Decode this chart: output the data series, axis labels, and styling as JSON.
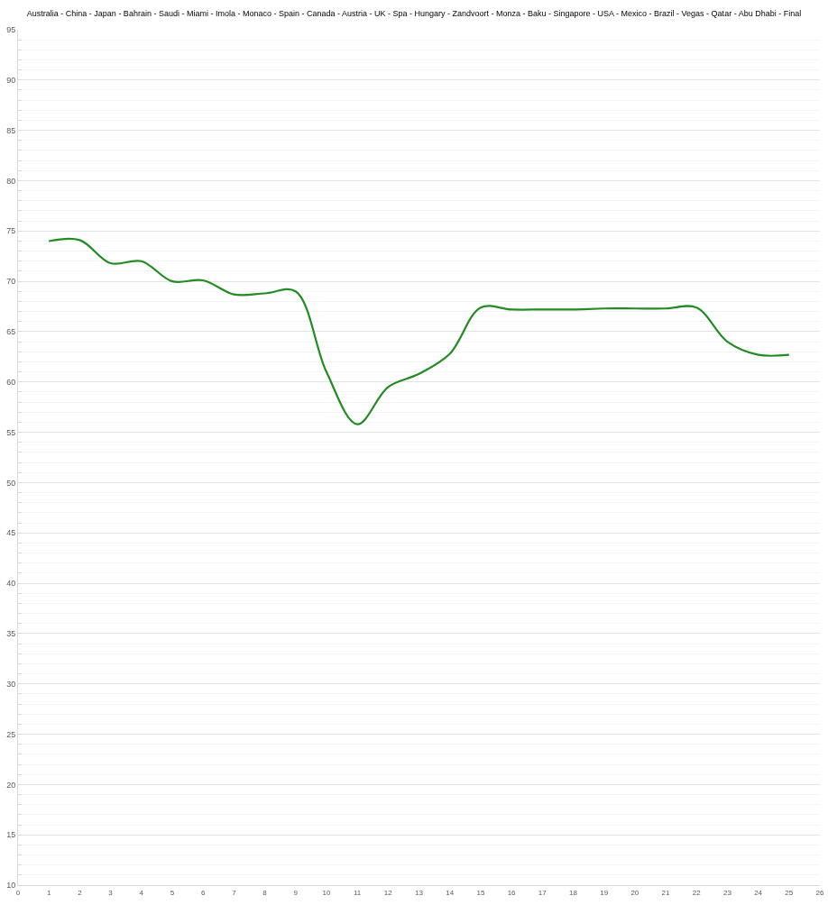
{
  "chart_data": {
    "type": "line",
    "title": "Australia - China - Japan - Bahrain - Saudi - Miami - Imola - Monaco - Spain - Canada - Austria - UK - Spa - Hungary - Zandvoort - Monza - Baku - Singapore - USA - Mexico - Brazil - Vegas - Qatar - Abu Dhabi - Final",
    "x": [
      1,
      2,
      3,
      4,
      5,
      6,
      7,
      8,
      9,
      10,
      11,
      12,
      13,
      14,
      15,
      16,
      17,
      18,
      19,
      20,
      21,
      22,
      23,
      24,
      25
    ],
    "values": [
      74.0,
      74.1,
      71.8,
      72.0,
      70.0,
      70.1,
      68.7,
      68.8,
      69.0,
      61.0,
      55.8,
      59.5,
      60.8,
      62.8,
      67.4,
      67.2,
      67.2,
      67.2,
      67.3,
      67.3,
      67.3,
      67.4,
      64.0,
      62.7,
      62.7
    ],
    "color": "#228b22",
    "xlim": [
      0,
      26
    ],
    "xticks": [
      0,
      1,
      2,
      3,
      4,
      5,
      6,
      7,
      8,
      9,
      10,
      11,
      12,
      13,
      14,
      15,
      16,
      17,
      18,
      19,
      20,
      21,
      22,
      23,
      24,
      25,
      26
    ],
    "ylim": [
      10,
      95
    ],
    "yticks": [
      10,
      {
        "value": 11,
        "label": null
      },
      {
        "value": 12,
        "label": null
      },
      {
        "value": 13,
        "label": null
      },
      {
        "value": 14,
        "label": null
      },
      15,
      {
        "value": 16,
        "label": null
      },
      {
        "value": 17,
        "label": null
      },
      {
        "value": 18,
        "label": null
      },
      {
        "value": 19,
        "label": null
      },
      20,
      {
        "value": 21,
        "label": null
      },
      {
        "value": 22,
        "label": null
      },
      {
        "value": 23,
        "label": null
      },
      {
        "value": 24,
        "label": null
      },
      25,
      {
        "value": 26,
        "label": null
      },
      {
        "value": 27,
        "label": null
      },
      {
        "value": 28,
        "label": null
      },
      {
        "value": 29,
        "label": null
      },
      30,
      {
        "value": 31,
        "label": null
      },
      {
        "value": 32,
        "label": null
      },
      {
        "value": 33,
        "label": null
      },
      {
        "value": 34,
        "label": null
      },
      35,
      {
        "value": 36,
        "label": null
      },
      {
        "value": 37,
        "label": null
      },
      {
        "value": 38,
        "label": null
      },
      {
        "value": 39,
        "label": null
      },
      40,
      {
        "value": 41,
        "label": null
      },
      {
        "value": 42,
        "label": null
      },
      {
        "value": 43,
        "label": null
      },
      {
        "value": 44,
        "label": null
      },
      45,
      {
        "value": 46,
        "label": null
      },
      {
        "value": 47,
        "label": null
      },
      {
        "value": 48,
        "label": null
      },
      {
        "value": 49,
        "label": null
      },
      50,
      {
        "value": 51,
        "label": null
      },
      {
        "value": 52,
        "label": null
      },
      {
        "value": 53,
        "label": null
      },
      {
        "value": 54,
        "label": null
      },
      55,
      {
        "value": 56,
        "label": null
      },
      {
        "value": 57,
        "label": null
      },
      {
        "value": 58,
        "label": null
      },
      {
        "value": 59,
        "label": null
      },
      60,
      {
        "value": 61,
        "label": null
      },
      {
        "value": 62,
        "label": null
      },
      {
        "value": 63,
        "label": null
      },
      {
        "value": 64,
        "label": null
      },
      65,
      {
        "value": 66,
        "label": null
      },
      {
        "value": 67,
        "label": null
      },
      {
        "value": 68,
        "label": null
      },
      {
        "value": 69,
        "label": null
      },
      70,
      {
        "value": 71,
        "label": null
      },
      {
        "value": 72,
        "label": null
      },
      {
        "value": 73,
        "label": null
      },
      {
        "value": 74,
        "label": null
      },
      75,
      {
        "value": 76,
        "label": null
      },
      {
        "value": 77,
        "label": null
      },
      {
        "value": 78,
        "label": null
      },
      {
        "value": 79,
        "label": null
      },
      80,
      {
        "value": 81,
        "label": null
      },
      {
        "value": 82,
        "label": null
      },
      {
        "value": 83,
        "label": null
      },
      {
        "value": 84,
        "label": null
      },
      85,
      {
        "value": 86,
        "label": null
      },
      {
        "value": 87,
        "label": null
      },
      {
        "value": 88,
        "label": null
      },
      {
        "value": 89,
        "label": null
      },
      90,
      {
        "value": 91,
        "label": null
      },
      {
        "value": 92,
        "label": null
      },
      {
        "value": 93,
        "label": null
      },
      {
        "value": 94,
        "label": null
      },
      95
    ],
    "grid": "y"
  }
}
